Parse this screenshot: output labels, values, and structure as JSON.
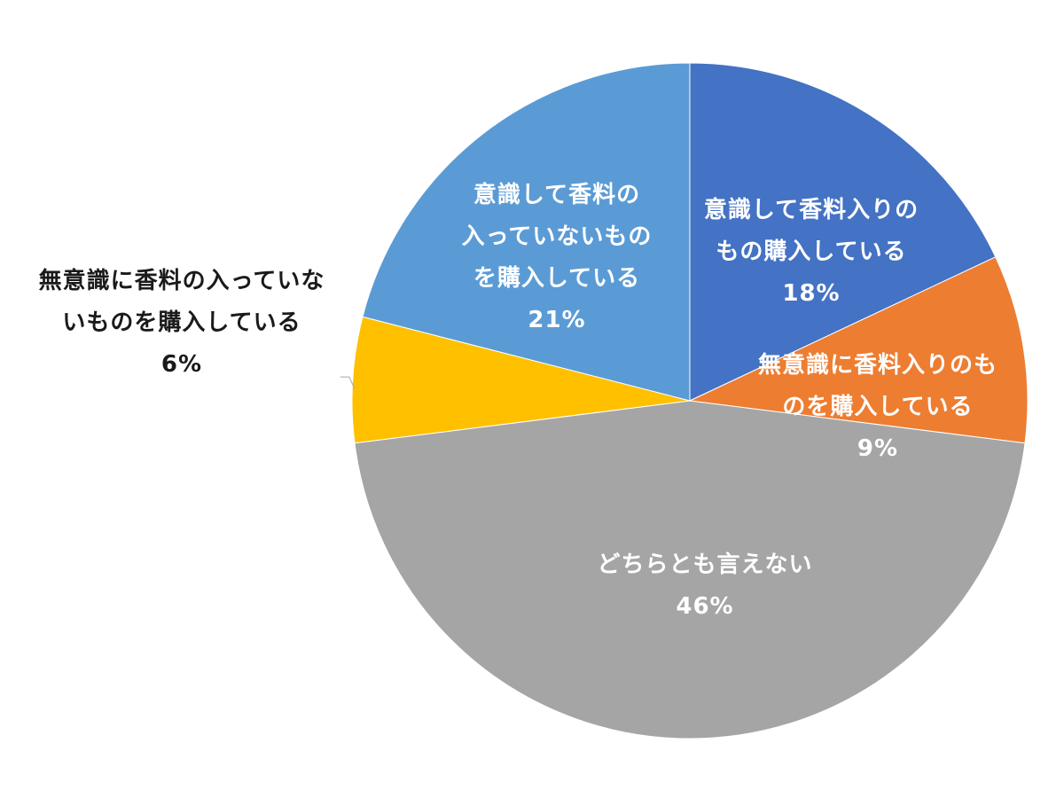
{
  "chart_data": {
    "type": "pie",
    "title": "",
    "slices": [
      {
        "label_lines": [
          "意識して香料入りの",
          "もの購入している"
        ],
        "value": 18,
        "value_text": "18%",
        "color": "#4472c4",
        "label_position": "inside"
      },
      {
        "label_lines": [
          "無意識に香料入りのも",
          "のを購入している"
        ],
        "value": 9,
        "value_text": "9%",
        "color": "#ed7d31",
        "label_position": "inside"
      },
      {
        "label_lines": [
          "どちらとも言えない"
        ],
        "value": 46,
        "value_text": "46%",
        "color": "#a5a5a5",
        "label_position": "inside"
      },
      {
        "label_lines": [
          "無意識に香料の入っていな",
          "いものを購入している"
        ],
        "value": 6,
        "value_text": "6%",
        "color": "#ffc000",
        "label_position": "outside-left"
      },
      {
        "label_lines": [
          "意識して香料の",
          "入っていないもの",
          "を購入している"
        ],
        "value": 21,
        "value_text": "21%",
        "color": "#5b9bd5",
        "label_position": "inside"
      }
    ],
    "start_angle": "12 o'clock",
    "direction": "clockwise",
    "legend": "none"
  }
}
